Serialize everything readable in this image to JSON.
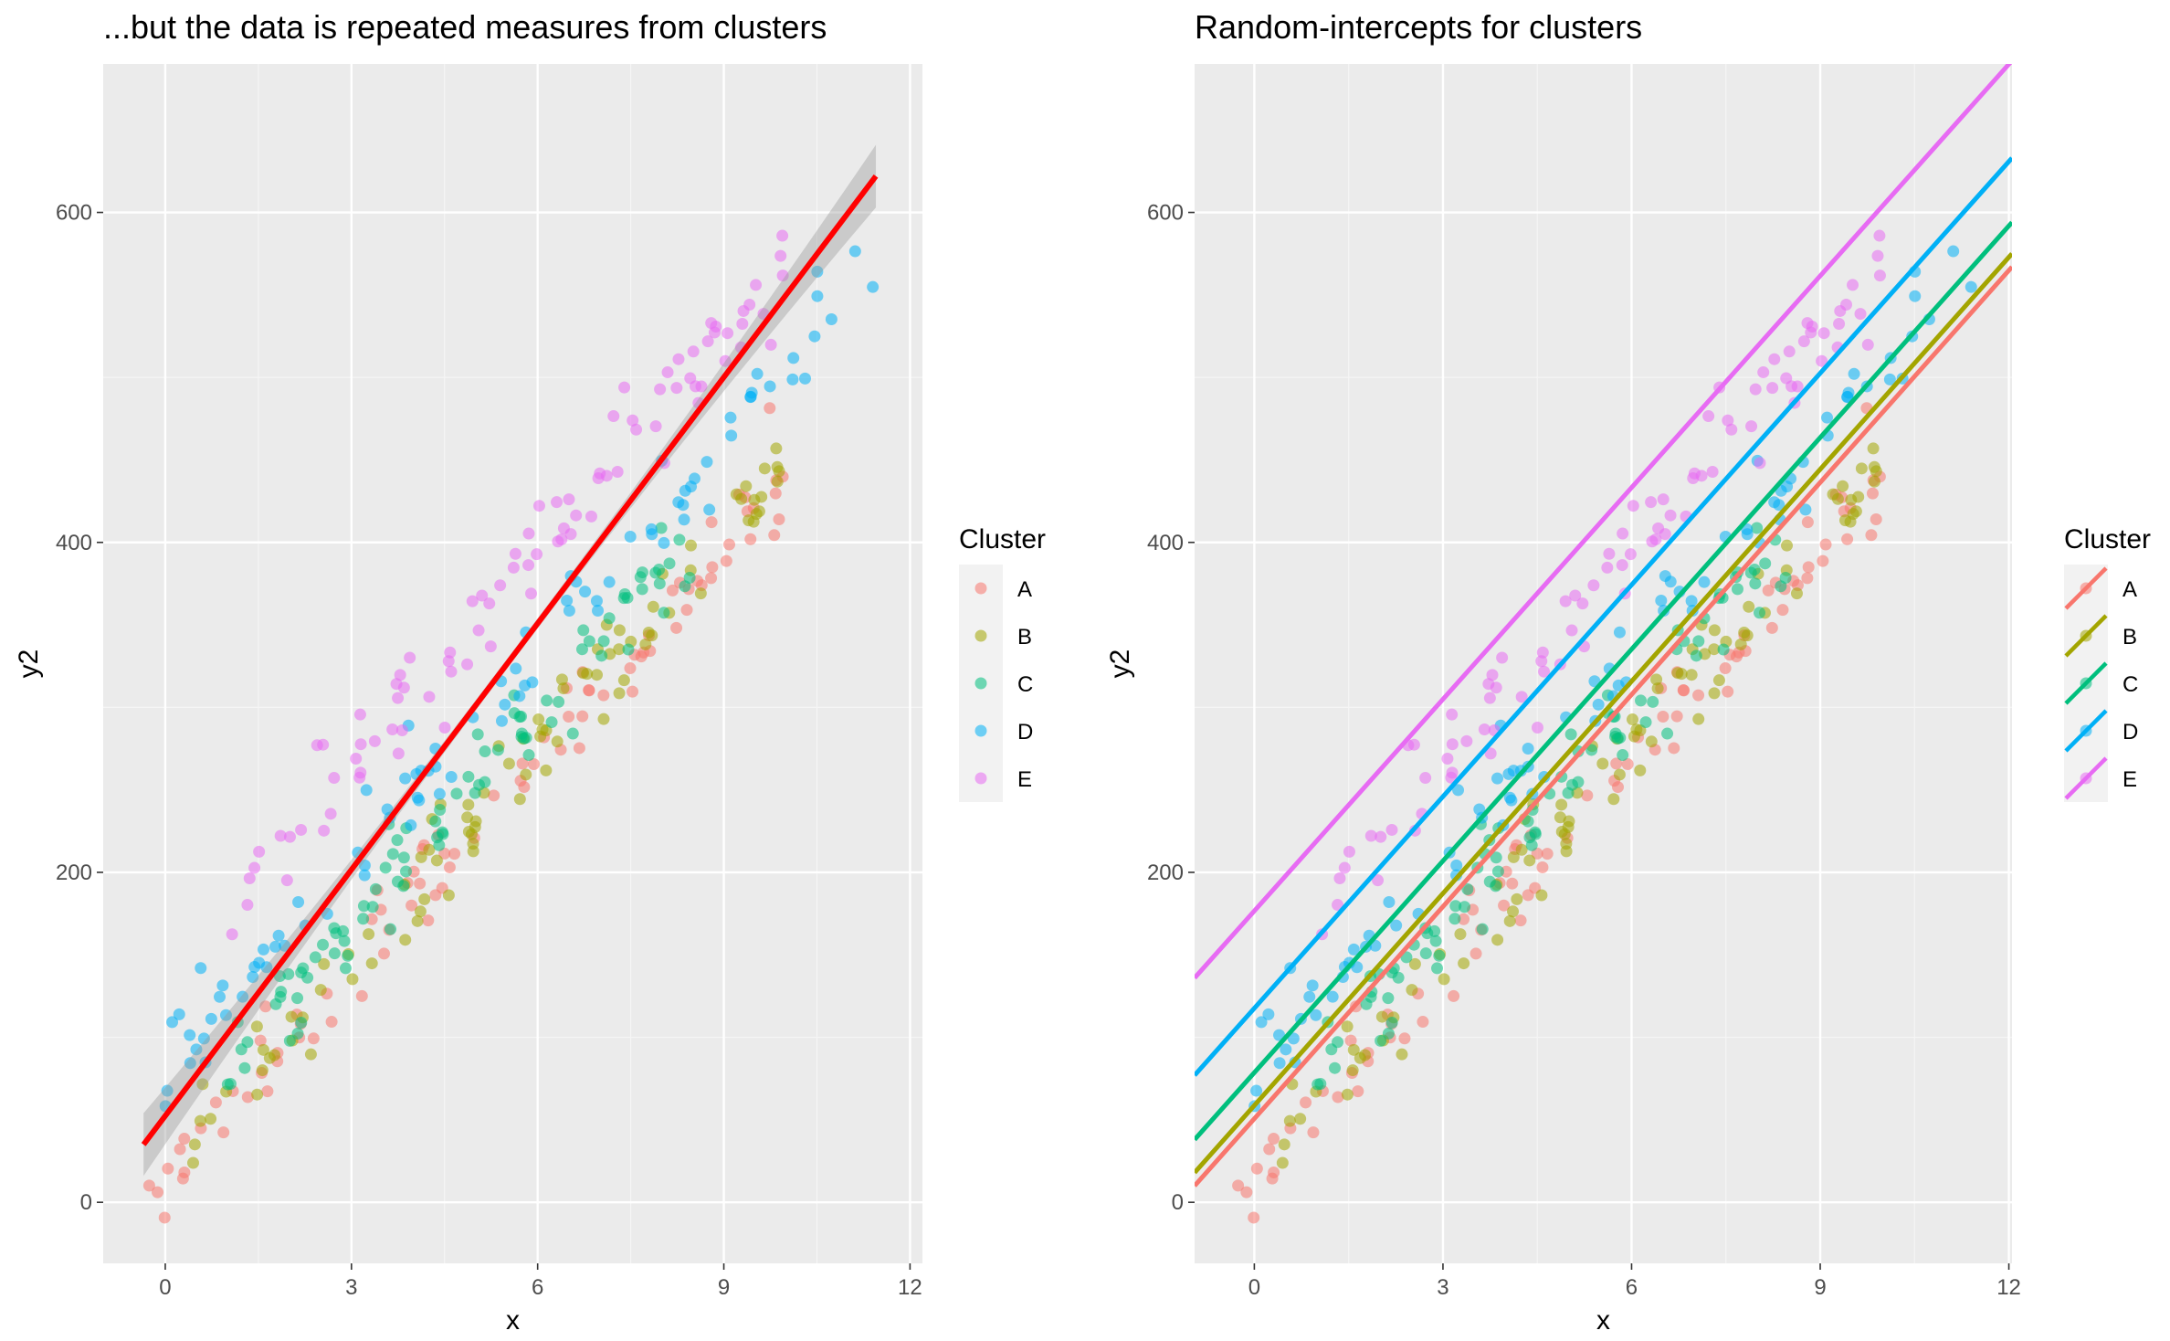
{
  "chart_data": [
    {
      "type": "scatter",
      "title": "...but the data is repeated measures from clusters",
      "xlabel": "x",
      "ylabel": "y2",
      "xlim": [
        -1,
        12.2
      ],
      "ylim": [
        -37,
        690
      ],
      "x_ticks": [
        0,
        3,
        6,
        9,
        12
      ],
      "y_ticks": [
        0,
        200,
        400,
        600
      ],
      "grid": true,
      "legend": {
        "title": "Cluster",
        "position": "right",
        "entries": [
          "A",
          "B",
          "C",
          "D",
          "E"
        ]
      },
      "fit_line": {
        "type": "linear",
        "color": "#ff0000",
        "points": [
          [
            -0.35,
            35
          ],
          [
            11.45,
            622
          ]
        ],
        "confidence_band": true
      },
      "series_lines": [],
      "seed": 7
    },
    {
      "type": "scatter",
      "title": "Random-intercepts for clusters",
      "xlabel": "x",
      "ylabel": "y2",
      "xlim": [
        -0.95,
        12.05
      ],
      "ylim": [
        -37,
        690
      ],
      "x_ticks": [
        0,
        3,
        6,
        9,
        12
      ],
      "y_ticks": [
        0,
        200,
        400,
        600
      ],
      "grid": true,
      "legend": {
        "title": "Cluster",
        "position": "right",
        "entries": [
          "A",
          "B",
          "C",
          "D",
          "E"
        ]
      },
      "fit_line": null,
      "series_lines": [
        {
          "name": "A",
          "points": [
            [
              -0.95,
              10
            ],
            [
              12.05,
              567
            ]
          ]
        },
        {
          "name": "B",
          "points": [
            [
              -0.95,
              18
            ],
            [
              12.05,
              575
            ]
          ]
        },
        {
          "name": "C",
          "points": [
            [
              -0.95,
              38
            ],
            [
              12.05,
              594
            ]
          ]
        },
        {
          "name": "D",
          "points": [
            [
              -0.95,
              77
            ],
            [
              12.05,
              633
            ]
          ]
        },
        {
          "name": "E",
          "points": [
            [
              -0.95,
              136
            ],
            [
              12.05,
              692
            ]
          ]
        }
      ],
      "seed": 7
    }
  ],
  "series": [
    {
      "name": "A",
      "color": "#F8766D",
      "intercept": 12.0,
      "slope": 42.8,
      "x_range": [
        -0.3,
        10.0
      ],
      "n": 90,
      "noise": 14
    },
    {
      "name": "B",
      "color": "#A3A500",
      "intercept": 20.0,
      "slope": 42.8,
      "x_range": [
        0.3,
        9.9
      ],
      "n": 90,
      "noise": 14
    },
    {
      "name": "C",
      "color": "#00BF7D",
      "intercept": 40.0,
      "slope": 42.8,
      "x_range": [
        1.0,
        8.5
      ],
      "n": 90,
      "noise": 14
    },
    {
      "name": "D",
      "color": "#00B0F6",
      "intercept": 78.0,
      "slope": 42.8,
      "x_range": [
        0.0,
        11.5
      ],
      "n": 90,
      "noise": 14
    },
    {
      "name": "E",
      "color": "#E76BF3",
      "intercept": 137.0,
      "slope": 42.8,
      "x_range": [
        0.9,
        10.2
      ],
      "n": 90,
      "noise": 14
    }
  ],
  "colors": {
    "panel_bg": "#EBEBEB",
    "grid_major": "#FFFFFF",
    "grid_minor": "#F5F5F5",
    "fit_line": "#FF0000",
    "band": "#999999",
    "tick_text": "#4D4D4D",
    "legend_key_bg": "#F2F2F2"
  }
}
